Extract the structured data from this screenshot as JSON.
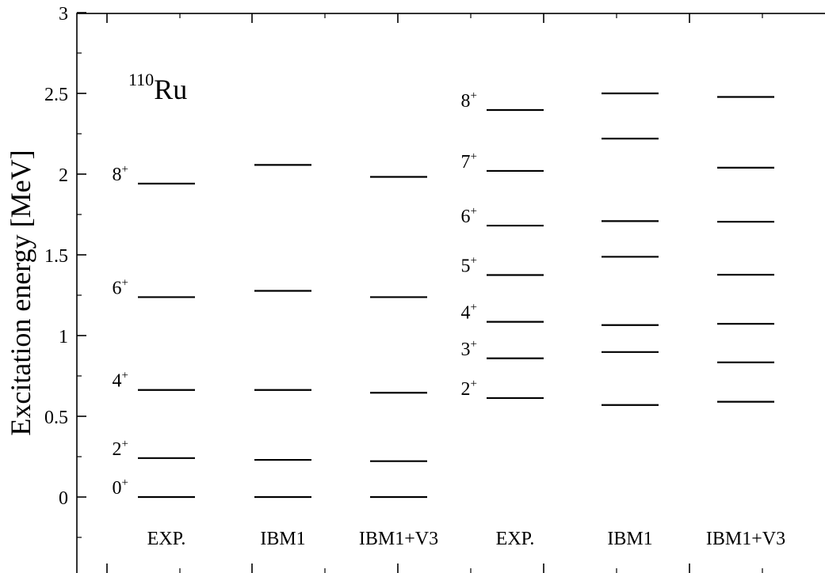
{
  "chart_data": {
    "type": "level-scheme",
    "title": "",
    "nucleus": {
      "mass_number": "110",
      "element": "Ru"
    },
    "ylabel": "Excitation energy [MeV]",
    "xlabel": "",
    "ylim": [
      -0.35,
      3.0
    ],
    "yticks": [
      {
        "value": 0,
        "label": "0"
      },
      {
        "value": 0.5,
        "label": "0.5"
      },
      {
        "value": 1,
        "label": "1"
      },
      {
        "value": 1.5,
        "label": "1.5"
      },
      {
        "value": 2,
        "label": "2"
      },
      {
        "value": 2.5,
        "label": "2.5"
      },
      {
        "value": 3,
        "label": "3"
      }
    ],
    "columns": [
      {
        "label": "EXP.",
        "band": "ground",
        "levels": [
          {
            "energy": 0.0,
            "spin": "0",
            "parity": "+"
          },
          {
            "energy": 0.241,
            "spin": "2",
            "parity": "+"
          },
          {
            "energy": 0.663,
            "spin": "4",
            "parity": "+"
          },
          {
            "energy": 1.238,
            "spin": "6",
            "parity": "+"
          },
          {
            "energy": 1.941,
            "spin": "8",
            "parity": "+"
          }
        ]
      },
      {
        "label": "IBM1",
        "band": "ground",
        "levels": [
          {
            "energy": 0.0
          },
          {
            "energy": 0.23
          },
          {
            "energy": 0.663
          },
          {
            "energy": 1.277
          },
          {
            "energy": 2.057
          }
        ]
      },
      {
        "label": "IBM1+V3",
        "band": "ground",
        "levels": [
          {
            "energy": 0.0
          },
          {
            "energy": 0.222
          },
          {
            "energy": 0.646
          },
          {
            "energy": 1.238
          },
          {
            "energy": 1.983
          }
        ]
      },
      {
        "label": "EXP.",
        "band": "gamma",
        "levels": [
          {
            "energy": 0.613,
            "spin": "2",
            "parity": "+"
          },
          {
            "energy": 0.859,
            "spin": "3",
            "parity": "+"
          },
          {
            "energy": 1.085,
            "spin": "4",
            "parity": "+"
          },
          {
            "energy": 1.375,
            "spin": "5",
            "parity": "+"
          },
          {
            "energy": 1.681,
            "spin": "6",
            "parity": "+"
          },
          {
            "energy": 2.02,
            "spin": "7",
            "parity": "+"
          },
          {
            "energy": 2.397,
            "spin": "8",
            "parity": "+"
          }
        ]
      },
      {
        "label": "IBM1",
        "band": "gamma",
        "levels": [
          {
            "energy": 0.57
          },
          {
            "energy": 0.898
          },
          {
            "energy": 1.065
          },
          {
            "energy": 1.488
          },
          {
            "energy": 1.709
          },
          {
            "energy": 2.22
          },
          {
            "energy": 2.5
          }
        ]
      },
      {
        "label": "IBM1+V3",
        "band": "gamma",
        "levels": [
          {
            "energy": 0.59
          },
          {
            "energy": 0.834
          },
          {
            "energy": 1.073
          },
          {
            "energy": 1.377
          },
          {
            "energy": 1.705
          },
          {
            "energy": 2.04
          },
          {
            "energy": 2.478
          }
        ]
      }
    ],
    "grid": false,
    "legend": "none"
  }
}
